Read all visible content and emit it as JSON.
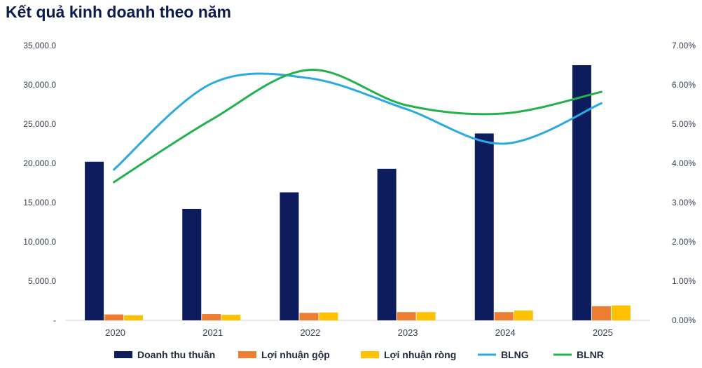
{
  "chart_data": {
    "type": "bar",
    "title": "Kết quả kinh doanh theo năm",
    "categories": [
      "2020",
      "2021",
      "2022",
      "2023",
      "2024",
      "2025"
    ],
    "ylim": [
      0,
      35000
    ],
    "ylim_right": [
      0,
      0.07
    ],
    "yticks_left": [
      "-",
      "5,000.0",
      "10,000.0",
      "15,000.0",
      "20,000.0",
      "25,000.0",
      "30,000.0",
      "35,000.0"
    ],
    "yticks_right": [
      "0.00%",
      "1.00%",
      "2.00%",
      "3.00%",
      "4.00%",
      "5.00%",
      "6.00%",
      "7.00%"
    ],
    "series": [
      {
        "name": "Doanh thu thuần",
        "kind": "bar",
        "color": "#0c1c5c",
        "values": [
          20200,
          14200,
          16300,
          19300,
          23800,
          32500
        ]
      },
      {
        "name": "Lợi nhuận gộp",
        "kind": "bar",
        "color": "#ed7d31",
        "values": [
          750,
          800,
          950,
          1050,
          1050,
          1800
        ]
      },
      {
        "name": "Lợi nhuận ròng",
        "kind": "bar",
        "color": "#ffc000",
        "values": [
          650,
          700,
          1000,
          1050,
          1250,
          1900
        ]
      },
      {
        "name": "BLNG",
        "kind": "line",
        "axis": "right",
        "color": "#29abe2",
        "values": [
          0.0384,
          0.0603,
          0.0617,
          0.0538,
          0.045,
          0.0553
        ]
      },
      {
        "name": "BLNR",
        "kind": "line",
        "axis": "right",
        "color": "#22b14c",
        "values": [
          0.0352,
          0.0511,
          0.0638,
          0.0548,
          0.0527,
          0.0582
        ]
      }
    ],
    "legend": "bottom"
  }
}
